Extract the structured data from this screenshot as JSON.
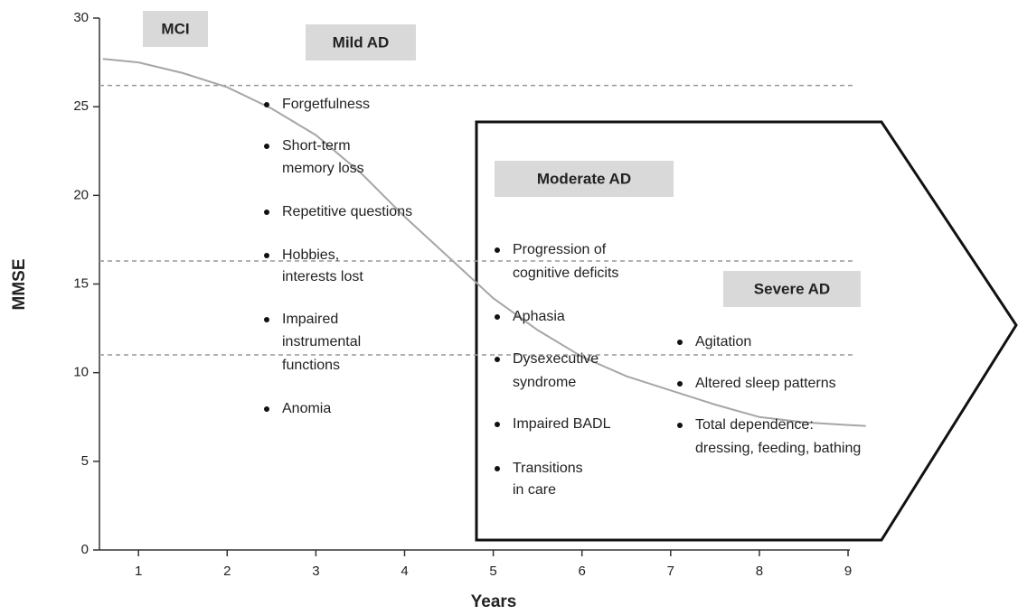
{
  "chart_data": {
    "type": "line",
    "x_label": "Years",
    "y_label": "MMSE",
    "xlim": [
      0.56,
      9.02
    ],
    "ylim": [
      0,
      30
    ],
    "xticks": [
      1,
      2,
      3,
      4,
      5,
      6,
      7,
      8,
      9
    ],
    "yticks": [
      0,
      5,
      10,
      15,
      20,
      25,
      30
    ],
    "x": [
      0.6,
      1,
      1.5,
      2,
      2.5,
      3,
      3.5,
      4,
      4.5,
      5,
      5.5,
      6,
      6.5,
      7,
      7.5,
      8,
      8.5,
      9,
      9.2
    ],
    "series": [
      {
        "color": "#a6a6a6",
        "values": [
          27.7,
          27.5,
          26.9,
          26.1,
          24.9,
          23.4,
          21.3,
          18.8,
          16.5,
          14.2,
          12.4,
          10.9,
          9.8,
          9.0,
          8.2,
          7.5,
          7.2,
          7.05,
          7.0
        ]
      }
    ],
    "reference_lines": {
      "color": "#999999",
      "values": [
        26.2,
        16.3,
        11.0
      ]
    },
    "stages": [
      "MCI",
      "Mild AD",
      "Moderate AD",
      "Severe AD"
    ],
    "annotations": [
      [
        [
          "Forgetfulness"
        ],
        [
          "Short-term",
          "memory loss"
        ],
        [
          "Repetitive questions"
        ],
        [
          "Hobbies,",
          "interests lost"
        ],
        [
          "Impaired",
          "instrumental",
          "functions"
        ],
        [
          "Anomia"
        ]
      ],
      [
        [
          "Progression of",
          "cognitive deficits"
        ],
        [
          "Aphasia"
        ],
        [
          "Dysexecutive",
          "syndrome"
        ],
        [
          "Impaired BADL"
        ],
        [
          "Transitions",
          "in care"
        ]
      ],
      [
        [
          "Agitation"
        ],
        [
          "Altered sleep patterns"
        ],
        [
          "Total dependence:",
          "dressing, feeding, bathing"
        ]
      ]
    ]
  }
}
